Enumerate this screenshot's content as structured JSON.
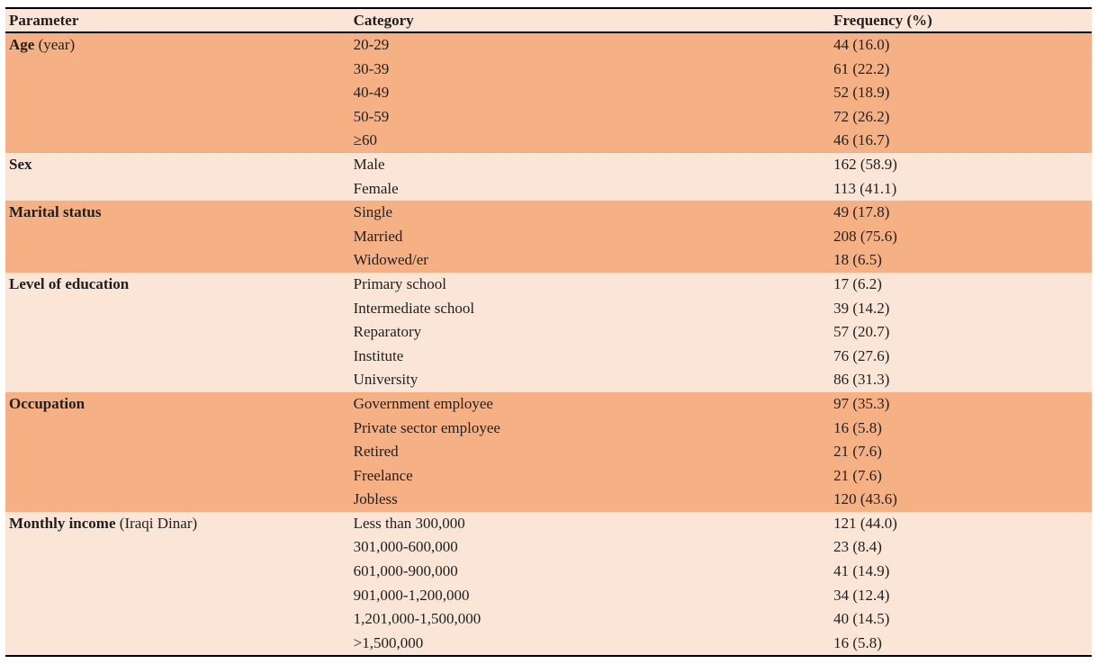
{
  "colors": {
    "group_dark": "#f5b183",
    "group_light": "#fbe5d6",
    "rule": "#000000",
    "text": "#1f1f1f"
  },
  "table": {
    "columns": [
      "Parameter",
      "Category",
      "Frequency (%)"
    ],
    "groups": [
      {
        "parameter": {
          "bold": "Age",
          "rest": " (year)"
        },
        "rows": [
          {
            "category": "20-29",
            "frequency": "44 (16.0)"
          },
          {
            "category": "30-39",
            "frequency": "61 (22.2)"
          },
          {
            "category": "40-49",
            "frequency": "52 (18.9)"
          },
          {
            "category": "50-59",
            "frequency": "72 (26.2)"
          },
          {
            "category": "≥60",
            "frequency": "46 (16.7)"
          }
        ]
      },
      {
        "parameter": {
          "bold": "Sex",
          "rest": ""
        },
        "rows": [
          {
            "category": "Male",
            "frequency": "162 (58.9)"
          },
          {
            "category": "Female",
            "frequency": "113 (41.1)"
          }
        ]
      },
      {
        "parameter": {
          "bold": "Marital status",
          "rest": ""
        },
        "rows": [
          {
            "category": "Single",
            "frequency": "49 (17.8)"
          },
          {
            "category": "Married",
            "frequency": "208 (75.6)"
          },
          {
            "category": "Widowed/er",
            "frequency": "18 (6.5)"
          }
        ]
      },
      {
        "parameter": {
          "bold": "Level of education",
          "rest": ""
        },
        "rows": [
          {
            "category": "Primary school",
            "frequency": "17 (6.2)"
          },
          {
            "category": "Intermediate school",
            "frequency": "39 (14.2)"
          },
          {
            "category": "Reparatory",
            "frequency": "57 (20.7)"
          },
          {
            "category": "Institute",
            "frequency": "76 (27.6)"
          },
          {
            "category": "University",
            "frequency": "86 (31.3)"
          }
        ]
      },
      {
        "parameter": {
          "bold": "Occupation",
          "rest": ""
        },
        "rows": [
          {
            "category": "Government employee",
            "frequency": "97 (35.3)"
          },
          {
            "category": "Private sector employee",
            "frequency": "16 (5.8)"
          },
          {
            "category": "Retired",
            "frequency": "21 (7.6)"
          },
          {
            "category": "Freelance",
            "frequency": "21 (7.6)"
          },
          {
            "category": "Jobless",
            "frequency": "120 (43.6)"
          }
        ]
      },
      {
        "parameter": {
          "bold": "Monthly income",
          "rest": " (Iraqi Dinar)"
        },
        "rows": [
          {
            "category": "Less than 300,000",
            "frequency": "121 (44.0)"
          },
          {
            "category": "301,000-600,000",
            "frequency": "23 (8.4)"
          },
          {
            "category": "601,000-900,000",
            "frequency": "41 (14.9)"
          },
          {
            "category": "901,000-1,200,000",
            "frequency": "34 (12.4)"
          },
          {
            "category": "1,201,000-1,500,000",
            "frequency": "40 (14.5)"
          },
          {
            "category": ">1,500,000",
            "frequency": "16 (5.8)"
          }
        ]
      }
    ]
  }
}
